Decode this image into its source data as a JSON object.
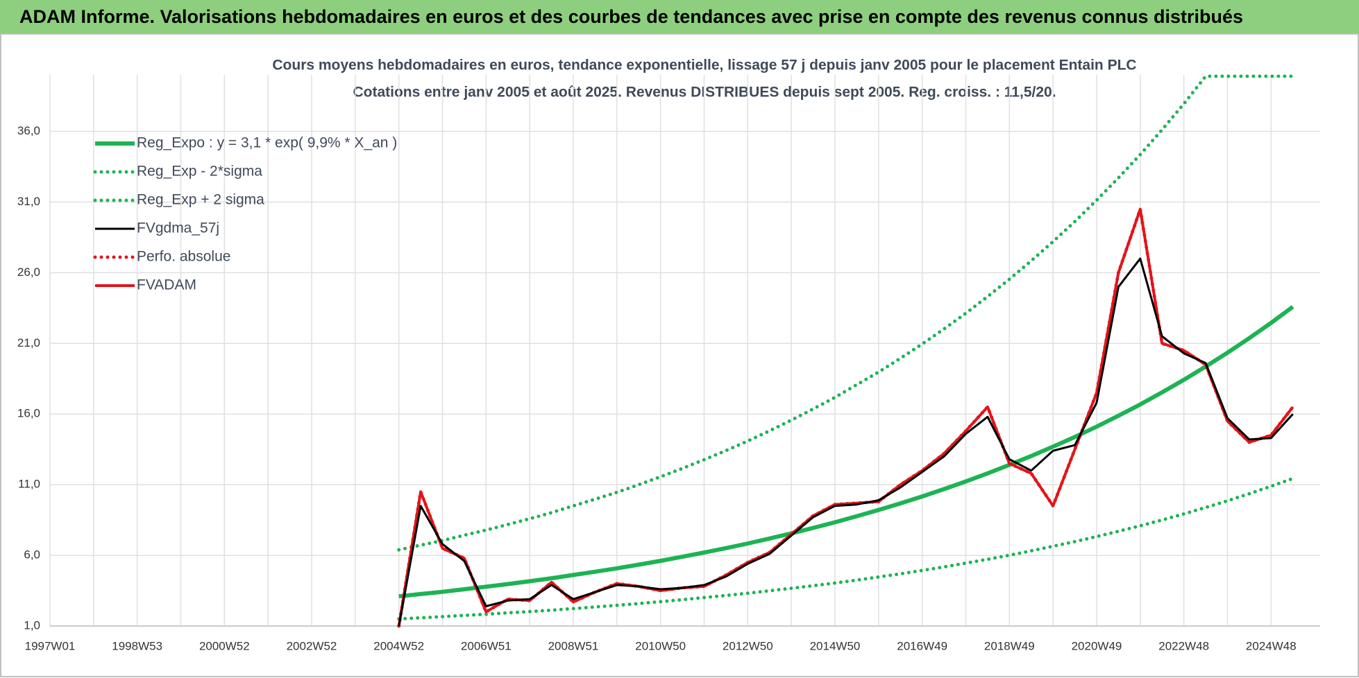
{
  "header": {
    "title": "ADAM Informe. Valorisations hebdomadaires en euros et des courbes de tendances avec prise en compte des revenus connus distribués"
  },
  "chart_data": {
    "type": "line",
    "title": "Cours moyens hebdomadaires en euros, tendance exponentielle, lissage 57 j depuis janv 2005 pour le placement Entain PLC",
    "subtitle": "Cotations entre janv 2005 et août 2025.  Revenus DISTRIBUES depuis sept 2005.  Reg. croiss. : 11,5/20.",
    "categories": [
      "1997W01",
      null,
      null,
      null,
      "1998W53",
      null,
      null,
      null,
      "2000W52",
      null,
      null,
      null,
      "2002W52",
      null,
      null,
      null,
      "2004W52",
      null,
      null,
      null,
      "2006W51",
      null,
      null,
      null,
      "2008W51",
      null,
      null,
      null,
      "2010W50",
      null,
      null,
      null,
      "2012W50",
      null,
      null,
      null,
      "2014W50",
      null,
      null,
      null,
      "2016W49",
      null,
      null,
      null,
      "2018W49",
      null,
      null,
      null,
      "2020W49",
      null,
      null,
      null,
      "2022W48",
      null,
      null,
      null,
      "2024W48",
      null
    ],
    "ylim": [
      1,
      40
    ],
    "yticks": [
      {
        "value": 1,
        "label": "1,0"
      },
      {
        "value": 6,
        "label": "6,0"
      },
      {
        "value": 11,
        "label": "11,0"
      },
      {
        "value": 16,
        "label": "16,0"
      },
      {
        "value": 21,
        "label": "21,0"
      },
      {
        "value": 26,
        "label": "26,0"
      },
      {
        "value": 31,
        "label": "31,0"
      },
      {
        "value": 36,
        "label": "36,0"
      }
    ],
    "grid": true,
    "legend": "top-left",
    "series": [
      {
        "name": "Reg_Expo : y = 3,1 * exp( 9,9% *  X_an )",
        "color": "#1db354",
        "style": "solid",
        "values": [
          null,
          null,
          null,
          null,
          null,
          null,
          null,
          null,
          null,
          null,
          null,
          null,
          null,
          null,
          null,
          null,
          3.1,
          3.26,
          3.42,
          3.6,
          3.78,
          3.97,
          4.17,
          4.38,
          4.61,
          4.84,
          5.08,
          5.34,
          5.61,
          5.9,
          6.2,
          6.51,
          6.84,
          7.19,
          7.56,
          7.94,
          8.34,
          8.77,
          9.21,
          9.68,
          10.17,
          10.69,
          11.23,
          11.8,
          12.4,
          13.03,
          13.69,
          14.38,
          15.11,
          15.88,
          16.68,
          17.53,
          18.42,
          19.36,
          20.34,
          21.37,
          22.45,
          23.59
        ]
      },
      {
        "name": "Reg_Exp - 2*sigma",
        "color": "#1db354",
        "style": "dotted",
        "values": [
          null,
          null,
          null,
          null,
          null,
          null,
          null,
          null,
          null,
          null,
          null,
          null,
          null,
          null,
          null,
          null,
          1.5,
          1.58,
          1.66,
          1.75,
          1.83,
          1.93,
          2.02,
          2.12,
          2.23,
          2.35,
          2.46,
          2.59,
          2.72,
          2.86,
          3.01,
          3.16,
          3.32,
          3.49,
          3.67,
          3.85,
          4.04,
          4.25,
          4.47,
          4.69,
          4.93,
          5.18,
          5.45,
          5.72,
          6.01,
          6.32,
          6.64,
          6.97,
          7.33,
          7.7,
          8.09,
          8.5,
          8.93,
          9.39,
          9.86,
          10.36,
          10.89,
          11.44
        ]
      },
      {
        "name": "Reg_Exp + 2 sigma",
        "color": "#1db354",
        "style": "dotted",
        "values": [
          null,
          null,
          null,
          null,
          null,
          null,
          null,
          null,
          null,
          null,
          null,
          null,
          null,
          null,
          null,
          null,
          6.39,
          6.72,
          7.05,
          7.42,
          7.79,
          8.18,
          8.59,
          9.02,
          9.5,
          9.97,
          10.46,
          11.0,
          11.56,
          12.15,
          12.77,
          13.41,
          14.09,
          14.81,
          15.57,
          16.36,
          17.18,
          18.07,
          18.97,
          19.94,
          20.95,
          22.02,
          23.13,
          24.31,
          25.54,
          26.84,
          28.2,
          29.62,
          31.13,
          32.71,
          34.36,
          36.11,
          37.95,
          39.9,
          39.9,
          39.9,
          39.9,
          39.9
        ]
      },
      {
        "name": "FVgdma_57j",
        "color": "#000000",
        "style": "solid",
        "values": [
          null,
          null,
          null,
          null,
          null,
          null,
          null,
          null,
          null,
          null,
          null,
          null,
          null,
          null,
          null,
          null,
          1.0,
          9.5,
          6.8,
          5.6,
          2.4,
          2.8,
          2.9,
          3.9,
          2.9,
          3.4,
          3.9,
          3.8,
          3.6,
          3.7,
          3.9,
          4.5,
          5.4,
          6.1,
          7.4,
          8.7,
          9.5,
          9.6,
          9.9,
          10.8,
          11.9,
          13.0,
          14.6,
          15.8,
          12.8,
          12.0,
          13.4,
          13.8,
          16.8,
          25.0,
          27.0,
          21.5,
          20.3,
          19.6,
          15.7,
          14.2,
          14.3,
          16.0
        ]
      },
      {
        "name": "Perfo. absolue",
        "color": "#e3141b",
        "style": "dotted",
        "values": [
          null,
          null,
          null,
          null,
          null,
          null,
          null,
          null,
          null,
          null,
          null,
          null,
          null,
          null,
          null,
          null,
          1.0,
          10.5,
          6.5,
          5.8,
          2.0,
          2.9,
          2.8,
          4.1,
          2.7,
          3.4,
          4.0,
          3.8,
          3.5,
          3.7,
          3.8,
          4.6,
          5.5,
          6.2,
          7.5,
          8.8,
          9.6,
          9.7,
          9.8,
          11.0,
          12.0,
          13.2,
          14.8,
          16.5,
          12.5,
          11.8,
          9.5,
          13.5,
          17.5,
          26.0,
          30.5,
          21.0,
          20.5,
          19.5,
          15.5,
          14.0,
          14.5,
          16.5
        ]
      },
      {
        "name": "FVADAM",
        "color": "#e3141b",
        "style": "solid",
        "values": [
          null,
          null,
          null,
          null,
          null,
          null,
          null,
          null,
          null,
          null,
          null,
          null,
          null,
          null,
          null,
          null,
          1.0,
          10.5,
          6.5,
          5.8,
          2.0,
          2.9,
          2.8,
          4.1,
          2.7,
          3.4,
          4.0,
          3.8,
          3.5,
          3.7,
          3.8,
          4.6,
          5.5,
          6.2,
          7.5,
          8.8,
          9.6,
          9.7,
          9.8,
          11.0,
          12.0,
          13.2,
          14.8,
          16.5,
          12.5,
          11.8,
          9.5,
          13.5,
          17.5,
          26.0,
          30.5,
          21.0,
          20.5,
          19.5,
          15.5,
          14.0,
          14.5,
          16.5
        ]
      }
    ]
  }
}
